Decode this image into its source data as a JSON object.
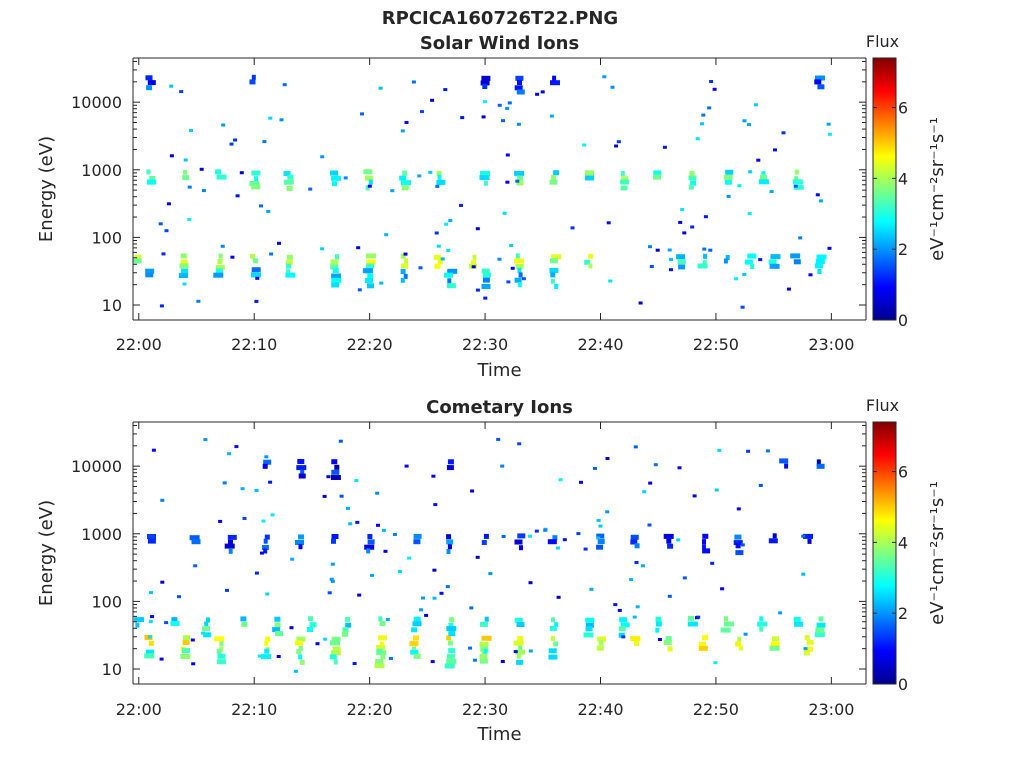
{
  "figure_title": "RPCICA160726T22.PNG",
  "chart_data": [
    {
      "type": "heatmap",
      "title": "Solar Wind Ions",
      "xlabel": "Time",
      "ylabel": "Energy (eV)",
      "x_ticks": [
        "22:00",
        "22:10",
        "22:20",
        "22:30",
        "22:40",
        "22:50",
        "23:00"
      ],
      "x_range": [
        "21:59:30",
        "23:03:00"
      ],
      "y_scale": "log",
      "y_ticks": [
        10,
        100,
        1000,
        10000
      ],
      "y_tick_labels": [
        "10",
        "100",
        "1000",
        "10000"
      ],
      "y_range": [
        6,
        45000
      ],
      "colorbar": {
        "label": "Flux",
        "unit": "eV⁻¹cm⁻²sr⁻¹s⁻¹",
        "ticks": [
          0,
          2,
          4,
          6
        ],
        "range": [
          0,
          7.4
        ]
      },
      "cell_groups": [
        {
          "energy_eV": 40,
          "mean_flux": 3.8,
          "times": [
            "22:00",
            "22:04",
            "22:07",
            "22:10",
            "22:13",
            "22:17",
            "22:20",
            "22:23",
            "22:26",
            "22:29",
            "22:33",
            "22:36",
            "22:39"
          ]
        },
        {
          "energy_eV": 700,
          "mean_flux": 3.2,
          "times": [
            "22:01",
            "22:04",
            "22:07",
            "22:10",
            "22:13",
            "22:17",
            "22:20",
            "22:23",
            "22:26",
            "22:30",
            "22:33",
            "22:36",
            "22:39",
            "22:42",
            "22:45",
            "22:48",
            "22:51",
            "22:54",
            "22:57"
          ]
        },
        {
          "energy_eV": 40,
          "mean_flux": 2.6,
          "times": [
            "22:47",
            "22:49",
            "22:51",
            "22:53",
            "22:55",
            "22:57",
            "22:59"
          ]
        },
        {
          "energy_eV": 25,
          "mean_flux": 2.5,
          "times": [
            "22:01",
            "22:04",
            "22:07",
            "22:10",
            "22:13",
            "22:17",
            "22:20",
            "22:23",
            "22:27",
            "22:30",
            "22:33",
            "22:36"
          ]
        },
        {
          "energy_eV": 18000,
          "mean_flux": 1.3,
          "times": [
            "22:01",
            "22:10",
            "22:30",
            "22:33",
            "22:36",
            "22:59"
          ]
        }
      ]
    },
    {
      "type": "heatmap",
      "title": "Cometary Ions",
      "xlabel": "Time",
      "ylabel": "Energy (eV)",
      "x_ticks": [
        "22:00",
        "22:10",
        "22:20",
        "22:30",
        "22:40",
        "22:50",
        "23:00"
      ],
      "x_range": [
        "21:59:30",
        "23:03:00"
      ],
      "y_scale": "log",
      "y_ticks": [
        10,
        100,
        1000,
        10000
      ],
      "y_tick_labels": [
        "10",
        "100",
        "1000",
        "10000"
      ],
      "y_range": [
        6,
        45000
      ],
      "colorbar": {
        "label": "Flux",
        "unit": "eV⁻¹cm⁻²sr⁻¹s⁻¹",
        "ticks": [
          0,
          2,
          4,
          6
        ],
        "range": [
          0,
          7.4
        ]
      },
      "cell_groups": [
        {
          "energy_eV": 22,
          "mean_flux": 4.3,
          "times": [
            "22:01",
            "22:04",
            "22:07",
            "22:11",
            "22:14",
            "22:17",
            "22:21",
            "22:24",
            "22:27",
            "22:30",
            "22:33",
            "22:36",
            "22:40",
            "22:43",
            "22:46",
            "22:49",
            "22:52",
            "22:55",
            "22:58"
          ]
        },
        {
          "energy_eV": 14,
          "mean_flux": 3.3,
          "times": [
            "22:01",
            "22:04",
            "22:07",
            "22:11",
            "22:14",
            "22:17",
            "22:21",
            "22:24",
            "22:27",
            "22:30",
            "22:33",
            "22:36"
          ]
        },
        {
          "energy_eV": 42,
          "mean_flux": 3.0,
          "times": [
            "22:00",
            "22:03",
            "22:06",
            "22:09",
            "22:12",
            "22:15",
            "22:18",
            "22:21",
            "22:24",
            "22:27",
            "22:30",
            "22:33",
            "22:36",
            "22:39",
            "22:42",
            "22:45",
            "22:48",
            "22:51",
            "22:54",
            "22:57",
            "22:59"
          ]
        },
        {
          "energy_eV": 700,
          "mean_flux": 1.3,
          "times": [
            "22:01",
            "22:05",
            "22:08",
            "22:11",
            "22:14",
            "22:17",
            "22:20",
            "22:24",
            "22:27",
            "22:30",
            "22:33",
            "22:36",
            "22:40",
            "22:43",
            "22:46",
            "22:49",
            "22:52",
            "22:55",
            "22:58"
          ]
        },
        {
          "energy_eV": 9000,
          "mean_flux": 1.1,
          "times": [
            "22:11",
            "22:14",
            "22:17",
            "22:27",
            "22:56",
            "22:59"
          ]
        }
      ]
    }
  ]
}
